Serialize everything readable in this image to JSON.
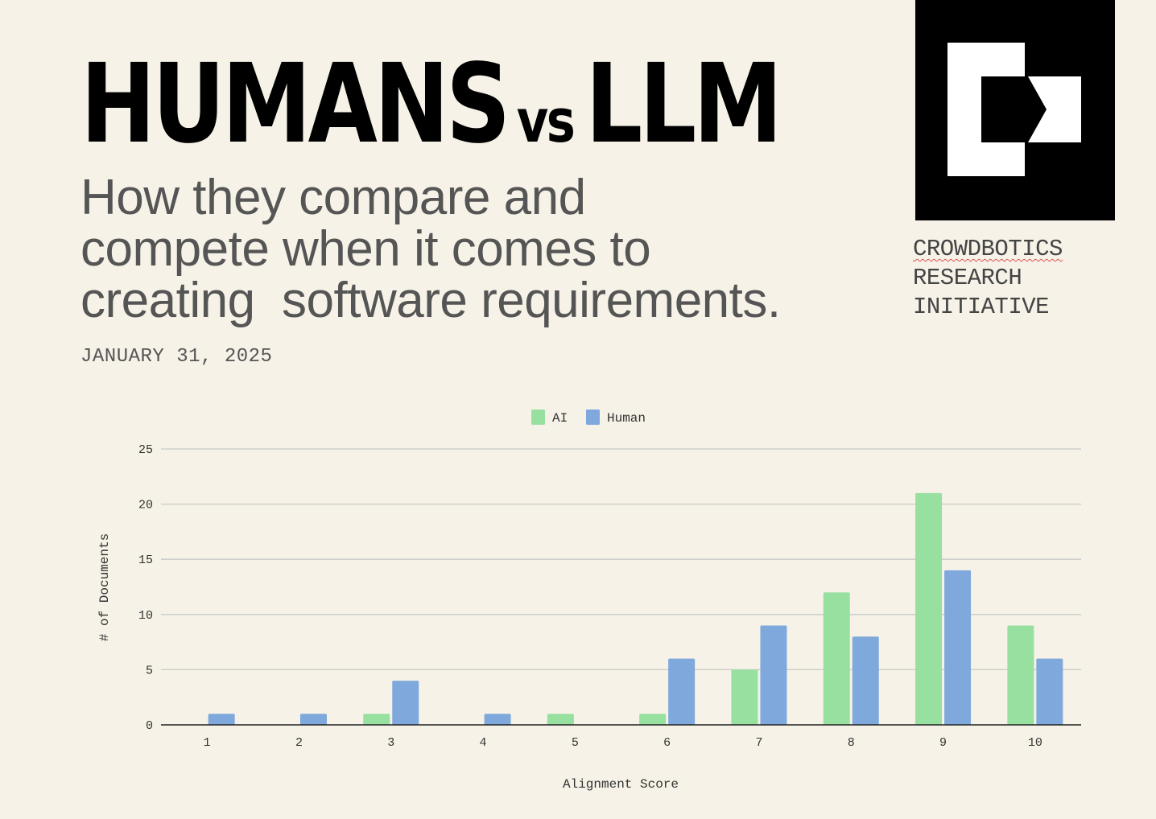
{
  "header": {
    "title_part1": "HUMANS",
    "title_vs": "vs",
    "title_part2": "LLM",
    "subtitle_lines": [
      "How they compare and",
      "compete when it comes to",
      "creating  software requirements."
    ],
    "date": "JANUARY 31, 2025"
  },
  "brand": {
    "org_lines": [
      "CROWDBOTICS",
      "RESEARCH",
      "INITIATIVE"
    ],
    "logo_icon": "crowdbotics-logo-icon"
  },
  "colors": {
    "background": "#f6f2e7",
    "ai": "#97e0a0",
    "human": "#7fa9dc",
    "grid": "#c8c8c8"
  },
  "chart_data": {
    "type": "bar",
    "categories": [
      "1",
      "2",
      "3",
      "4",
      "5",
      "6",
      "7",
      "8",
      "9",
      "10"
    ],
    "series": [
      {
        "name": "AI",
        "values": [
          0,
          0,
          1,
          0,
          1,
          1,
          5,
          12,
          21,
          9
        ]
      },
      {
        "name": "Human",
        "values": [
          1,
          1,
          4,
          1,
          0,
          6,
          9,
          8,
          14,
          6
        ]
      }
    ],
    "xlabel": "Alignment Score",
    "ylabel": "# of Documents",
    "ylim": [
      0,
      25
    ],
    "yticks": [
      0,
      5,
      10,
      15,
      20,
      25
    ],
    "grid": true,
    "legend_position": "top-center"
  }
}
